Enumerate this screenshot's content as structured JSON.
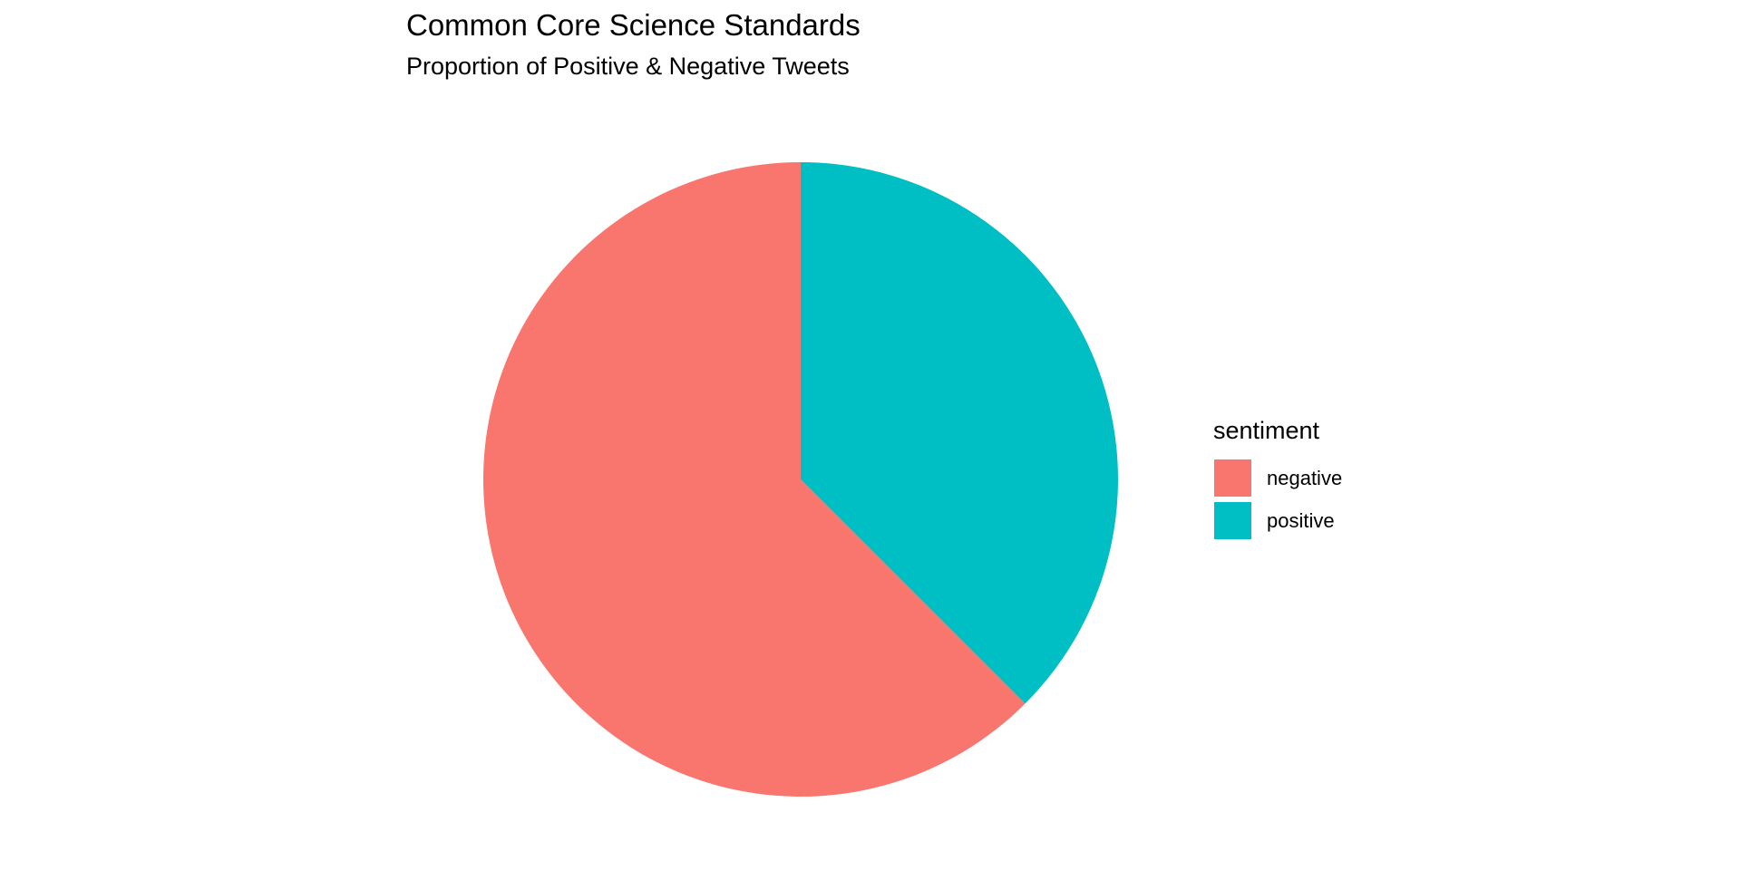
{
  "chart_data": {
    "type": "pie",
    "title": "Common Core Science Standards",
    "subtitle": "Proportion of Positive & Negative Tweets",
    "legend": {
      "title": "sentiment",
      "placement": "right"
    },
    "direction": "clockwise",
    "start_at": "top",
    "series": [
      {
        "name": "positive",
        "value": 0.375,
        "color": "#00BFC4"
      },
      {
        "name": "negative",
        "value": 0.625,
        "color": "#F8766D"
      }
    ],
    "grid": false
  }
}
